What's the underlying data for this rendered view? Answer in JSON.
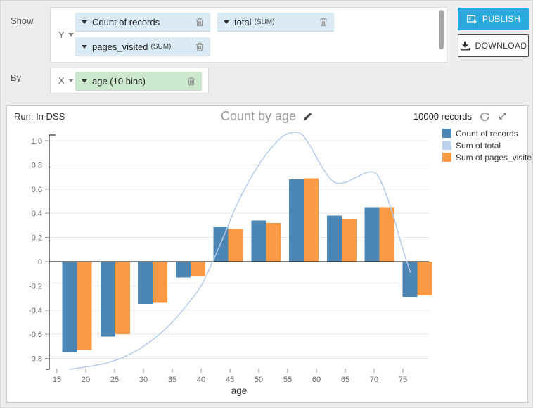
{
  "controls": {
    "show_label": "Show",
    "by_label": "By",
    "y_selector": "Y",
    "x_selector": "X",
    "y_pills": [
      {
        "name": "Count of records",
        "agg": ""
      },
      {
        "name": "total",
        "agg": "(SUM)"
      },
      {
        "name": "pages_visited",
        "agg": "(SUM)"
      }
    ],
    "x_pill": {
      "name": "age (10 bins)",
      "agg": ""
    }
  },
  "actions": {
    "publish": "PUBLISH",
    "download": "DOWNLOAD"
  },
  "chart_header": {
    "run": "Run: In DSS",
    "title": "Count by age",
    "records": "10000 records"
  },
  "legend": [
    {
      "label": "Count of records",
      "color": "#4c86b5"
    },
    {
      "label": "Sum of total",
      "color": "#bcd3ed"
    },
    {
      "label": "Sum of pages_visited",
      "color": "#fb9a45"
    }
  ],
  "chart_data": {
    "type": "bar+line combo",
    "title": "Count by age",
    "xlabel": "age",
    "x_ticks": [
      15,
      20,
      25,
      30,
      35,
      40,
      45,
      50,
      55,
      60,
      65,
      70,
      75
    ],
    "y_ticks": [
      1.0,
      0.8,
      0.6,
      0.4,
      0.2,
      0,
      -0.2,
      -0.4,
      -0.6,
      -0.8
    ],
    "ylim": [
      -0.95,
      1.1
    ],
    "xlim": [
      13.6,
      79.5
    ],
    "grid": true,
    "legend_position": "top-right",
    "bin_centers": [
      18.5,
      25.1,
      31.6,
      38.2,
      44.7,
      51.3,
      57.8,
      64.4,
      70.9,
      77.5
    ],
    "series": [
      {
        "name": "Count of records",
        "type": "bar",
        "color": "#4c86b5",
        "values": [
          -0.75,
          -0.62,
          -0.35,
          -0.13,
          0.29,
          0.34,
          0.68,
          0.38,
          0.45,
          -0.29
        ]
      },
      {
        "name": "Sum of pages_visited",
        "type": "bar",
        "color": "#fb9a45",
        "values": [
          -0.73,
          -0.6,
          -0.34,
          -0.12,
          0.27,
          0.32,
          0.69,
          0.35,
          0.45,
          -0.28
        ]
      },
      {
        "name": "Sum of total",
        "type": "line",
        "color": "#b3cbe9",
        "points": [
          [
            17.2,
            -0.89
          ],
          [
            20,
            -0.87
          ],
          [
            23,
            -0.845
          ],
          [
            26,
            -0.8
          ],
          [
            29,
            -0.73
          ],
          [
            32,
            -0.63
          ],
          [
            35,
            -0.5
          ],
          [
            38,
            -0.33
          ],
          [
            40,
            -0.2
          ],
          [
            42,
            0.0
          ],
          [
            44,
            0.22
          ],
          [
            46,
            0.45
          ],
          [
            48,
            0.64
          ],
          [
            50,
            0.8
          ],
          [
            52,
            0.93
          ],
          [
            54,
            1.03
          ],
          [
            56,
            1.07
          ],
          [
            57.5,
            1.05
          ],
          [
            59,
            0.95
          ],
          [
            61,
            0.78
          ],
          [
            63,
            0.66
          ],
          [
            65,
            0.655
          ],
          [
            67,
            0.7
          ],
          [
            69,
            0.74
          ],
          [
            70.5,
            0.72
          ],
          [
            72,
            0.57
          ],
          [
            73.5,
            0.35
          ],
          [
            75,
            0.1
          ],
          [
            76.3,
            -0.09
          ]
        ]
      }
    ]
  }
}
